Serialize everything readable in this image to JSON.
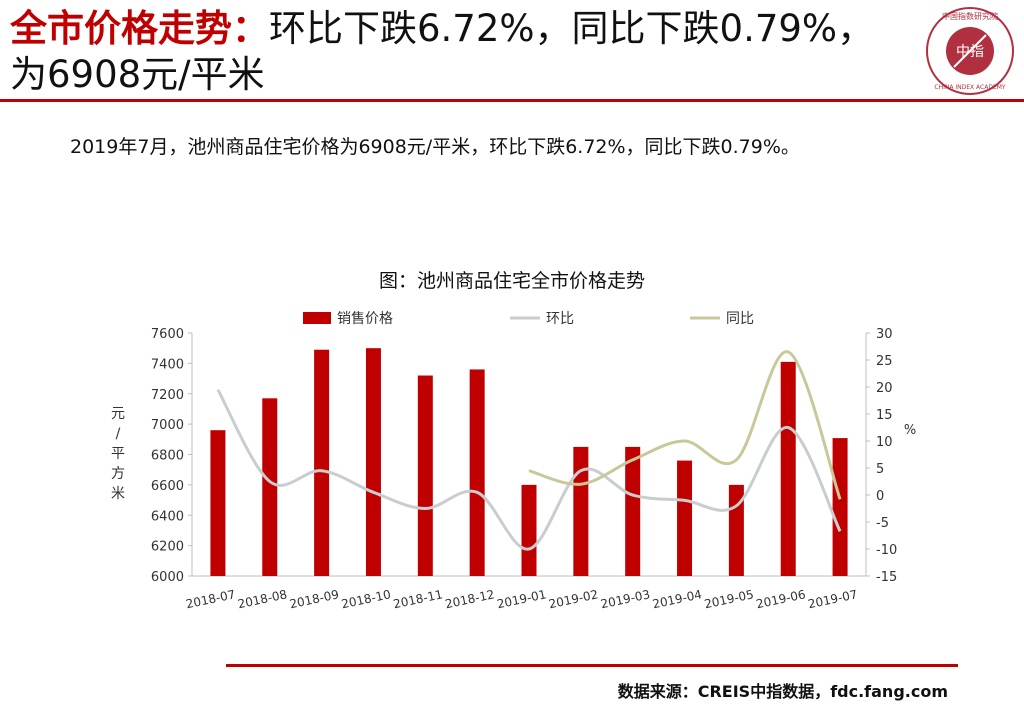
{
  "header": {
    "title_highlight": "全市价格走势：",
    "title_rest": "环比下跌6.72%，同比下跌0.79%，为6908元/平米"
  },
  "logo": {
    "name": "china-index-academy-logo",
    "center_text": "中指",
    "ring_text_cn": "中国指数研究院",
    "ring_text_en": "CHINA INDEX ACADEMY"
  },
  "summary": "2019年7月，池州商品住宅价格为6908元/平米，环比下跌6.72%，同比下跌0.79%。",
  "chart_data": {
    "type": "bar",
    "title": "图：池州商品住宅全市价格走势",
    "categories": [
      "2018-07",
      "2018-08",
      "2018-09",
      "2018-10",
      "2018-11",
      "2018-12",
      "2019-01",
      "2019-02",
      "2019-03",
      "2019-04",
      "2019-05",
      "2019-06",
      "2019-07"
    ],
    "series": [
      {
        "name": "销售价格",
        "type": "bar",
        "axis": "left",
        "color": "#c00000",
        "values": [
          6960,
          7170,
          7490,
          7500,
          7320,
          7360,
          6600,
          6850,
          6850,
          6760,
          6600,
          7410,
          6908
        ]
      },
      {
        "name": "环比",
        "type": "line",
        "axis": "right",
        "color": "#c8cdd0",
        "values": [
          19.5,
          2.5,
          4.5,
          0.5,
          -2.5,
          0.5,
          -10.0,
          4.5,
          0.0,
          -1.0,
          -2.0,
          12.5,
          -6.72
        ]
      },
      {
        "name": "同比",
        "type": "line",
        "axis": "right",
        "color": "#c8c89a",
        "values": [
          null,
          null,
          null,
          null,
          null,
          null,
          4.5,
          2.0,
          6.5,
          10.0,
          6.5,
          26.5,
          -0.79
        ]
      }
    ],
    "ylabel_left": "元/平方米",
    "ylabel_right": "%",
    "ylim_left": [
      6000,
      7600
    ],
    "yticks_left": [
      6000,
      6200,
      6400,
      6600,
      6800,
      7000,
      7200,
      7400,
      7600
    ],
    "ylim_right": [
      -15,
      30
    ],
    "yticks_right": [
      -15,
      -10,
      -5,
      0,
      5,
      10,
      15,
      20,
      25,
      30
    ],
    "legend_position": "top",
    "grid": false
  },
  "footer": {
    "source": "数据来源：CREIS中指数据，fdc.fang.com"
  }
}
